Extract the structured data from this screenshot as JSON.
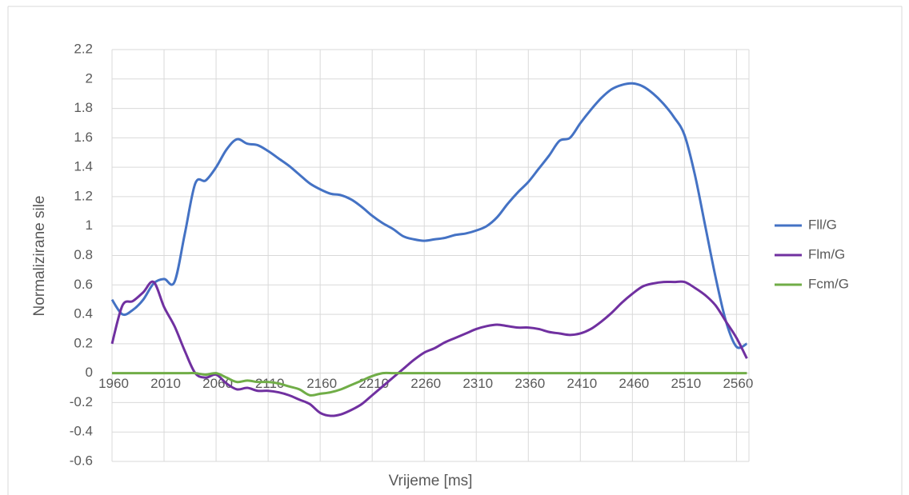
{
  "chart_data": {
    "type": "line",
    "xlabel": "Vrijeme [ms]",
    "ylabel": "Normalizirane sile",
    "x": [
      1960,
      1970,
      1980,
      1990,
      2000,
      2010,
      2020,
      2030,
      2040,
      2050,
      2060,
      2070,
      2080,
      2090,
      2100,
      2110,
      2120,
      2130,
      2140,
      2150,
      2160,
      2170,
      2180,
      2190,
      2200,
      2210,
      2220,
      2230,
      2240,
      2250,
      2260,
      2270,
      2280,
      2290,
      2300,
      2310,
      2320,
      2330,
      2340,
      2350,
      2360,
      2370,
      2380,
      2390,
      2400,
      2410,
      2420,
      2430,
      2440,
      2450,
      2460,
      2470,
      2480,
      2490,
      2500,
      2510,
      2520,
      2530,
      2540,
      2550,
      2560,
      2570
    ],
    "series": [
      {
        "name": "Fll/G",
        "color": "#4472c4",
        "values": [
          0.5,
          0.4,
          0.43,
          0.5,
          0.61,
          0.64,
          0.62,
          0.95,
          1.29,
          1.31,
          1.4,
          1.52,
          1.59,
          1.56,
          1.55,
          1.51,
          1.46,
          1.41,
          1.35,
          1.29,
          1.25,
          1.22,
          1.21,
          1.18,
          1.13,
          1.07,
          1.02,
          0.98,
          0.93,
          0.91,
          0.9,
          0.91,
          0.92,
          0.94,
          0.95,
          0.97,
          1.0,
          1.06,
          1.15,
          1.23,
          1.3,
          1.39,
          1.48,
          1.58,
          1.6,
          1.7,
          1.79,
          1.87,
          1.93,
          1.96,
          1.97,
          1.95,
          1.9,
          1.83,
          1.74,
          1.62,
          1.35,
          1.0,
          0.65,
          0.35,
          0.18,
          0.2
        ]
      },
      {
        "name": "Flm/G",
        "color": "#7030a0",
        "values": [
          0.2,
          0.46,
          0.49,
          0.55,
          0.62,
          0.45,
          0.32,
          0.15,
          0.0,
          -0.03,
          -0.01,
          -0.07,
          -0.11,
          -0.1,
          -0.12,
          -0.12,
          -0.13,
          -0.15,
          -0.18,
          -0.21,
          -0.27,
          -0.29,
          -0.28,
          -0.25,
          -0.21,
          -0.15,
          -0.09,
          -0.03,
          0.03,
          0.09,
          0.14,
          0.17,
          0.21,
          0.24,
          0.27,
          0.3,
          0.32,
          0.33,
          0.32,
          0.31,
          0.31,
          0.3,
          0.28,
          0.27,
          0.26,
          0.27,
          0.3,
          0.35,
          0.41,
          0.48,
          0.54,
          0.59,
          0.61,
          0.62,
          0.62,
          0.62,
          0.58,
          0.53,
          0.46,
          0.35,
          0.24,
          0.1
        ]
      },
      {
        "name": "Fcm/G",
        "color": "#70ad47",
        "values": [
          0,
          0,
          0,
          0,
          0,
          0,
          0,
          0,
          0,
          -0.01,
          0,
          -0.03,
          -0.06,
          -0.05,
          -0.06,
          -0.06,
          -0.07,
          -0.09,
          -0.11,
          -0.15,
          -0.14,
          -0.13,
          -0.11,
          -0.08,
          -0.05,
          -0.02,
          0,
          0,
          0,
          0,
          0,
          0,
          0,
          0,
          0,
          0,
          0,
          0,
          0,
          0,
          0,
          0,
          0,
          0,
          0,
          0,
          0,
          0,
          0,
          0,
          0,
          0,
          0,
          0,
          0,
          0,
          0,
          0,
          0,
          0,
          0,
          0
        ]
      }
    ],
    "xlim": [
      1960,
      2572
    ],
    "xticks": [
      1960,
      2010,
      2060,
      2110,
      2160,
      2210,
      2260,
      2310,
      2360,
      2410,
      2460,
      2510,
      2560
    ],
    "ylim": [
      -0.6,
      2.2
    ],
    "yticks": [
      -0.6,
      -0.4,
      -0.2,
      0,
      0.2,
      0.4,
      0.6,
      0.8,
      1,
      1.2,
      1.4,
      1.6,
      1.8,
      2,
      2.2
    ],
    "grid": true,
    "legend": "right"
  }
}
